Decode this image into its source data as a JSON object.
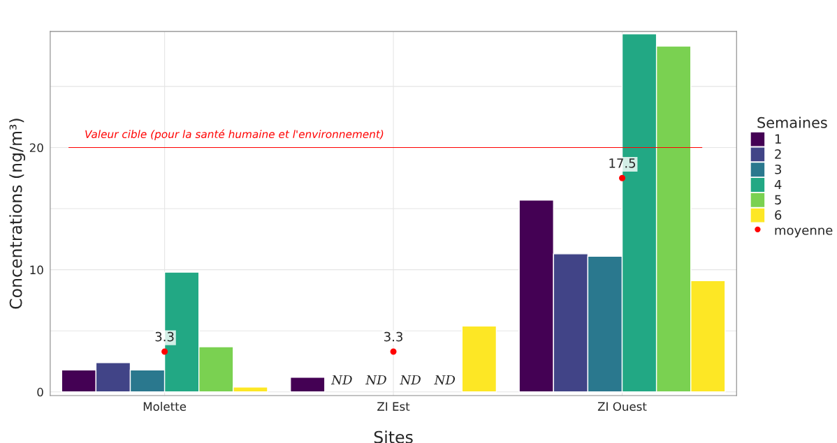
{
  "chart_data": {
    "type": "bar",
    "xlabel": "Sites",
    "ylabel": "Concentrations (ng/m³)",
    "legend_title": "Semaines",
    "categories": [
      "Molette",
      "ZI Est",
      "ZI Ouest"
    ],
    "series": [
      {
        "name": "1",
        "color": "#440154",
        "values": [
          1.8,
          1.2,
          15.7
        ]
      },
      {
        "name": "2",
        "color": "#414487",
        "values": [
          2.4,
          null,
          11.3
        ]
      },
      {
        "name": "3",
        "color": "#2a788e",
        "values": [
          1.8,
          null,
          11.1
        ]
      },
      {
        "name": "4",
        "color": "#22a884",
        "values": [
          9.8,
          null,
          29.3
        ]
      },
      {
        "name": "5",
        "color": "#7ad151",
        "values": [
          3.7,
          null,
          28.3
        ]
      },
      {
        "name": "6",
        "color": "#fde725",
        "values": [
          0.4,
          5.4,
          9.1
        ]
      },
      {
        "name": "moyenne",
        "type": "scatter",
        "color": "#ff0000",
        "values": [
          3.3,
          3.3,
          17.5
        ],
        "value_labels": [
          "3.3",
          "3.3",
          "17.5"
        ],
        "marker": "circle"
      }
    ],
    "ylim": [
      -0.3,
      29.5
    ],
    "yticks": [
      0,
      {
        "value": 5,
        "label": null
      },
      10,
      {
        "value": 15,
        "label": null
      },
      20,
      {
        "value": 25,
        "label": null
      }
    ],
    "grid": true,
    "legend": "right",
    "ref_lines": [
      {
        "axis": "y",
        "value": 20,
        "label": "Valeur cible (pour la santé humaine et l'environnement)",
        "color": "#ff0000"
      }
    ],
    "annotations": [
      "ND",
      "ND",
      "ND",
      "ND"
    ]
  }
}
